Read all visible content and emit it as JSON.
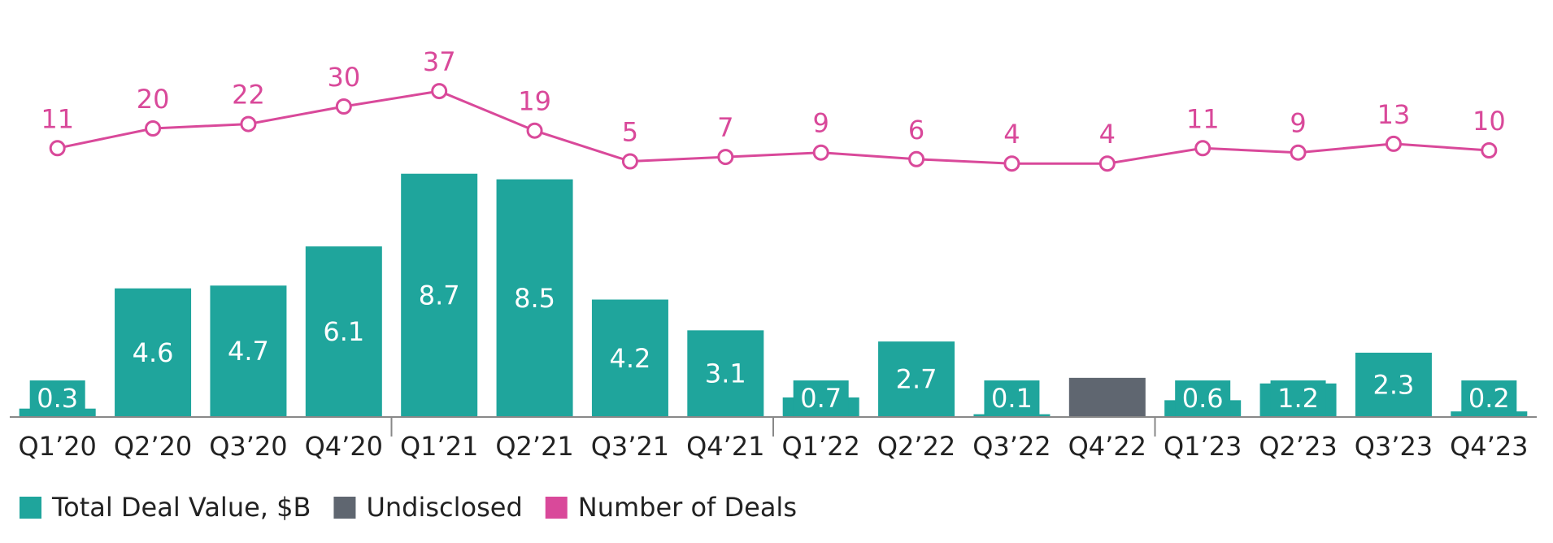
{
  "chart_data": {
    "type": "bar",
    "categories": [
      "Q1’20",
      "Q2’20",
      "Q3’20",
      "Q4’20",
      "Q1’21",
      "Q2’21",
      "Q3’21",
      "Q4’21",
      "Q1’22",
      "Q2’22",
      "Q3’22",
      "Q4’22",
      "Q1’23",
      "Q2’23",
      "Q3’23",
      "Q4’23"
    ],
    "series": [
      {
        "name": "Total Deal Value, $B",
        "color": "#1fa59c",
        "values": [
          0.3,
          4.6,
          4.7,
          6.1,
          8.7,
          8.5,
          4.2,
          3.1,
          0.7,
          2.7,
          0.1,
          null,
          0.6,
          1.2,
          2.3,
          0.2
        ]
      },
      {
        "name": "Undisclosed",
        "color": "#5f6670",
        "values": [
          null,
          null,
          null,
          null,
          null,
          null,
          null,
          null,
          null,
          null,
          null,
          1.4,
          null,
          null,
          null,
          null
        ]
      },
      {
        "name": "Number of Deals",
        "color": "#d9499a",
        "type": "line",
        "axis": "y2",
        "values": [
          11,
          20,
          22,
          30,
          37,
          19,
          5,
          7,
          9,
          6,
          4,
          4,
          11,
          9,
          13,
          10
        ]
      }
    ],
    "ylim": [
      0,
      10
    ],
    "y2lim": [
      0,
      40
    ],
    "legend": "bottom-left"
  }
}
